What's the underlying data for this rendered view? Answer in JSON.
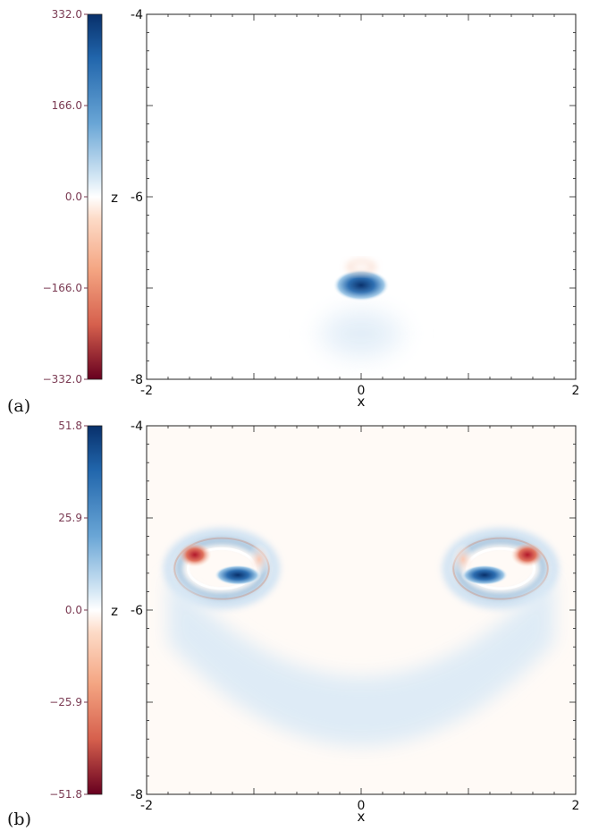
{
  "chart_data": [
    {
      "type": "heatmap",
      "panel_label": "(a)",
      "xlabel": "x",
      "ylabel": "z",
      "xlim": [
        -2,
        2
      ],
      "ylim": [
        -8,
        -4
      ],
      "x_ticks": [
        "-2",
        "0",
        "2"
      ],
      "y_ticks": [
        "-4",
        "-6",
        "-8"
      ],
      "colorbar": {
        "range": [
          -332.0,
          332.0
        ],
        "ticks": [
          "332.0",
          "166.0",
          "0.0",
          "−166.0",
          "−332.0"
        ],
        "colormap": "red-white-blue"
      },
      "colors": {
        "positive": "#08306b",
        "negative": "#67001f",
        "zero": "#ffffff"
      },
      "features": [
        {
          "shape": "blob",
          "x": 0.0,
          "z": -6.97,
          "sx": 0.12,
          "sz": 0.08,
          "value": 1.0
        },
        {
          "shape": "halo",
          "x": 0.0,
          "z": -7.5,
          "sx": 0.55,
          "sz": 0.4,
          "value": 0.08
        },
        {
          "shape": "arc",
          "x": 0.0,
          "z": -6.77,
          "sx": 0.05,
          "sz": 0.025,
          "value": -0.15
        }
      ]
    },
    {
      "type": "heatmap",
      "panel_label": "(b)",
      "xlabel": "x",
      "ylabel": "z",
      "xlim": [
        -2,
        2
      ],
      "ylim": [
        -8,
        -4
      ],
      "x_ticks": [
        "-2",
        "0",
        "2"
      ],
      "y_ticks": [
        "-4",
        "-6",
        "-8"
      ],
      "colorbar": {
        "range": [
          -51.8,
          51.8
        ],
        "ticks": [
          "51.8",
          "25.9",
          "0.0",
          "−25.9",
          "−51.8"
        ],
        "colormap": "red-white-blue"
      },
      "colors": {
        "positive": "#08306b",
        "negative": "#67001f",
        "zero": "#ffffff"
      },
      "features": [
        {
          "shape": "ring",
          "x": -1.3,
          "z": -5.55,
          "rx": 0.4,
          "rz": 0.3,
          "value": 0.55
        },
        {
          "shape": "ring",
          "x": 1.3,
          "z": -5.55,
          "rx": 0.4,
          "rz": 0.3,
          "value": 0.55
        },
        {
          "shape": "blob",
          "x": -1.55,
          "z": -5.4,
          "sx": 0.07,
          "sz": 0.06,
          "value": -0.8
        },
        {
          "shape": "blob",
          "x": 1.55,
          "z": -5.4,
          "sx": 0.07,
          "sz": 0.06,
          "value": -0.8
        },
        {
          "shape": "blob",
          "x": -1.15,
          "z": -5.62,
          "sx": 0.1,
          "sz": 0.05,
          "value": 1.0
        },
        {
          "shape": "blob",
          "x": 1.15,
          "z": -5.62,
          "sx": 0.1,
          "sz": 0.05,
          "value": 1.0
        },
        {
          "shape": "blob",
          "x": -0.95,
          "z": -5.45,
          "sx": 0.05,
          "sz": 0.08,
          "value": -0.3
        },
        {
          "shape": "blob",
          "x": 0.95,
          "z": -5.45,
          "sx": 0.05,
          "sz": 0.08,
          "value": -0.3
        },
        {
          "shape": "band",
          "x": 0.0,
          "z": -6.5,
          "sx": 1.8,
          "sz": 0.75,
          "value": 0.12
        }
      ]
    }
  ]
}
